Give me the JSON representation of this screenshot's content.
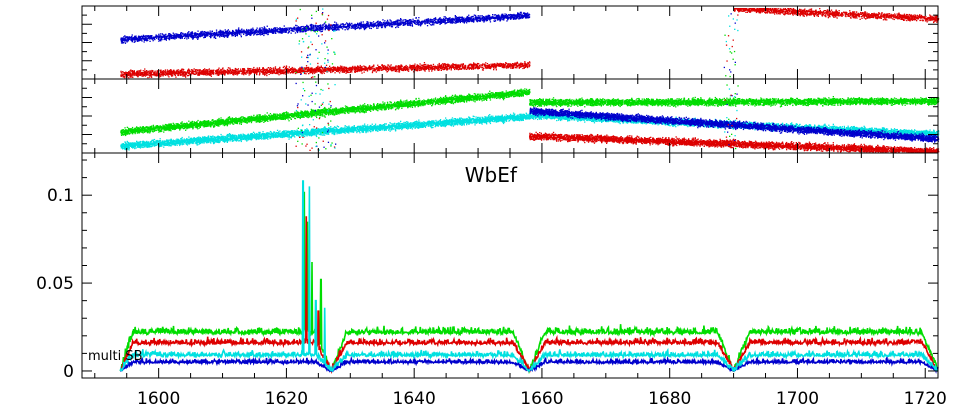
{
  "chart_data": [
    {
      "type": "scatter",
      "panel": "top-amplitude",
      "xlim": [
        1588,
        1722
      ],
      "grid": false,
      "series": [
        {
          "color": "#0000cc",
          "segments": [
            [
              1594,
              1658,
              0.55,
              0.9
            ]
          ]
        },
        {
          "color": "#dd0000",
          "segments": [
            [
              1594,
              1658,
              0.05,
              0.18
            ],
            [
              1690,
              1722,
              1.0,
              0.85
            ]
          ]
        }
      ]
    },
    {
      "type": "scatter",
      "panel": "middle-phase",
      "xlim": [
        1588,
        1722
      ],
      "grid": false,
      "series": [
        {
          "color": "#00dd00",
          "segments": [
            [
              1594,
              1658,
              0.28,
              0.85
            ],
            [
              1658,
              1722,
              0.7,
              0.72
            ]
          ]
        },
        {
          "color": "#00e0e0",
          "segments": [
            [
              1594,
              1658,
              0.08,
              0.5
            ],
            [
              1658,
              1722,
              0.52,
              0.25
            ]
          ]
        },
        {
          "color": "#0000cc",
          "segments": [
            [
              1658,
              1722,
              0.58,
              0.18
            ]
          ]
        },
        {
          "color": "#dd0000",
          "segments": [
            [
              1658,
              1722,
              0.22,
              0.0
            ]
          ]
        }
      ]
    },
    {
      "type": "line",
      "panel": "bottom",
      "title": "WbEf",
      "annotation": "multi SB",
      "xlim": [
        1588,
        1722
      ],
      "ylim": [
        -0.004,
        0.124
      ],
      "x_ticks": [
        1600,
        1620,
        1640,
        1660,
        1680,
        1700,
        1720
      ],
      "x_tick_labels": [
        "1600",
        "1620",
        "1640",
        "1660",
        "1680",
        "1700",
        "1720"
      ],
      "y_ticks": [
        0,
        0.05,
        0.1
      ],
      "y_tick_labels": [
        "0",
        "0.05",
        "0.1"
      ],
      "grid": false,
      "x_range": [
        1594,
        1722
      ],
      "dips": [
        1627,
        1658,
        1690,
        1722
      ],
      "spike_regions": [
        1622,
        1627
      ],
      "series": [
        {
          "color": "#00dd00",
          "level": 0.022,
          "noise": 0.005,
          "spikes": [
            {
              "x": 1622.8,
              "y": 0.102
            },
            {
              "x": 1623.3,
              "y": 0.085
            },
            {
              "x": 1624.0,
              "y": 0.062
            },
            {
              "x": 1625.4,
              "y": 0.052
            }
          ]
        },
        {
          "color": "#dd0000",
          "level": 0.016,
          "noise": 0.004,
          "spikes": [
            {
              "x": 1623.1,
              "y": 0.088
            },
            {
              "x": 1625.0,
              "y": 0.034
            }
          ]
        },
        {
          "color": "#0000cc",
          "level": 0.005,
          "noise": 0.003,
          "spikes": []
        },
        {
          "color": "#00e0e0",
          "level": 0.009,
          "noise": 0.004,
          "spikes": [
            {
              "x": 1622.6,
              "y": 0.108
            },
            {
              "x": 1623.6,
              "y": 0.105
            },
            {
              "x": 1624.6,
              "y": 0.04
            },
            {
              "x": 1626.0,
              "y": 0.036
            }
          ]
        }
      ]
    }
  ]
}
